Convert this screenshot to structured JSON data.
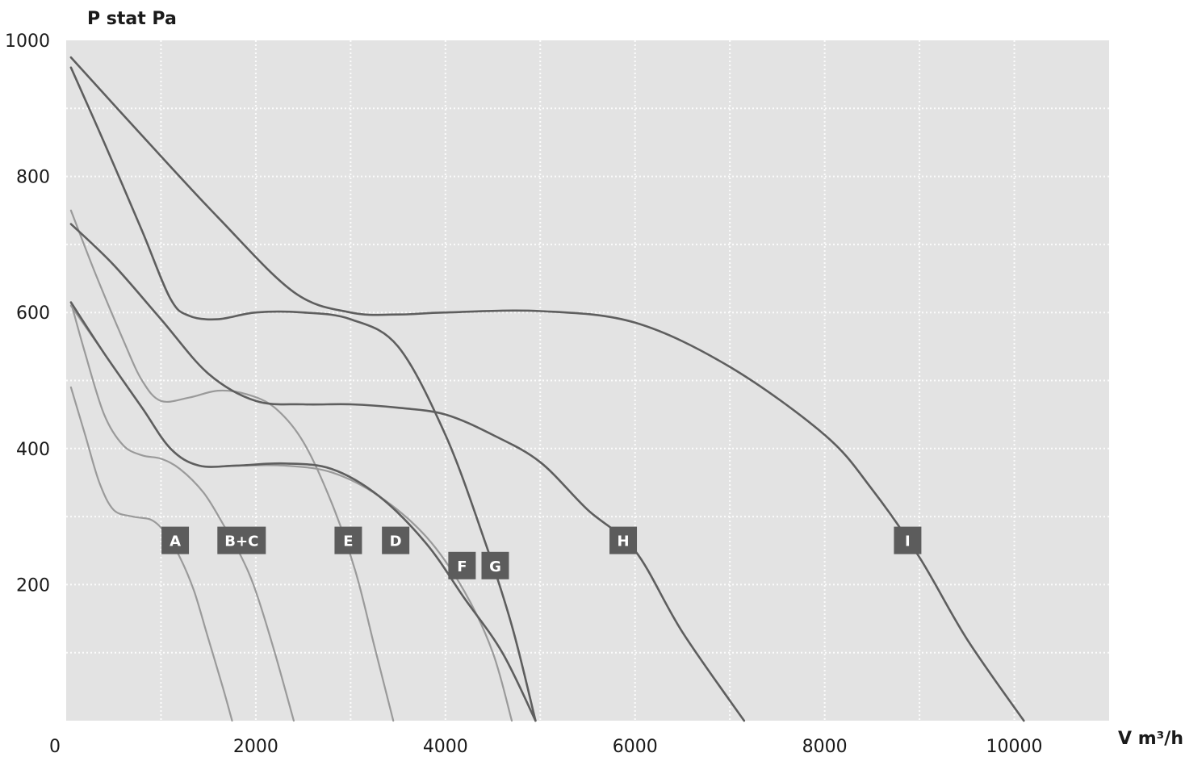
{
  "chart_data": {
    "type": "line",
    "title": "",
    "ylabel": "P stat Pa",
    "xlabel": "V m³/h",
    "xlim": [
      0,
      11000
    ],
    "ylim": [
      0,
      1000
    ],
    "x_ticks": [
      0,
      2000,
      4000,
      6000,
      8000,
      10000
    ],
    "y_ticks": [
      200,
      400,
      600,
      800,
      1000
    ],
    "x_tick_labels": [
      "0",
      "2000",
      "4000",
      "6000",
      "8000",
      "10000"
    ],
    "y_tick_labels": [
      "200",
      "400",
      "600",
      "800",
      "1000"
    ],
    "grid": true,
    "colors": {
      "plot_background": "#e3e3e3",
      "grid": "#ffffff",
      "curve_dark": "#5e5e5e",
      "curve_light": "#9a9a9a",
      "label_box": "#5c5c5c",
      "label_text": "#ffffff"
    },
    "series": [
      {
        "name": "A",
        "shade": "light",
        "x": [
          50,
          200,
          350,
          500,
          700,
          900,
          1050,
          1200,
          1350,
          1500,
          1650,
          1750
        ],
        "y": [
          490,
          420,
          350,
          310,
          300,
          295,
          275,
          240,
          190,
          120,
          50,
          0
        ]
      },
      {
        "name": "B+C",
        "shade": "light",
        "x": [
          50,
          200,
          400,
          600,
          800,
          1000,
          1200,
          1450,
          1650,
          1850,
          2000,
          2200,
          2400
        ],
        "y": [
          615,
          540,
          450,
          405,
          390,
          385,
          370,
          335,
          290,
          240,
          190,
          100,
          0
        ]
      },
      {
        "name": "E",
        "shade": "light",
        "x": [
          50,
          300,
          600,
          800,
          1000,
          1300,
          1600,
          1900,
          2200,
          2500,
          2800,
          3050,
          3250,
          3450
        ],
        "y": [
          750,
          660,
          560,
          500,
          470,
          475,
          485,
          480,
          460,
          410,
          320,
          220,
          110,
          0
        ]
      },
      {
        "name": "D",
        "shade": "light",
        "x": [
          50,
          400,
          800,
          1100,
          1400,
          1800,
          2300,
          2800,
          3300,
          3800,
          4200,
          4500,
          4700
        ],
        "y": [
          610,
          540,
          460,
          400,
          375,
          375,
          375,
          365,
          330,
          270,
          190,
          100,
          0
        ]
      },
      {
        "name": "F",
        "shade": "dark",
        "x": [
          50,
          400,
          800,
          1100,
          1400,
          1800,
          2300,
          2800,
          3300,
          3800,
          4200,
          4600,
          4950
        ],
        "y": [
          615,
          540,
          460,
          400,
          375,
          375,
          378,
          370,
          330,
          260,
          180,
          100,
          0
        ]
      },
      {
        "name": "G",
        "shade": "dark",
        "x": [
          50,
          400,
          800,
          1100,
          1300,
          1600,
          2000,
          2500,
          3000,
          3500,
          4000,
          4400,
          4700,
          4950
        ],
        "y": [
          960,
          850,
          720,
          620,
          595,
          590,
          600,
          600,
          590,
          550,
          420,
          270,
          140,
          0
        ]
      },
      {
        "name": "H",
        "shade": "dark",
        "x": [
          50,
          500,
          1000,
          1500,
          2000,
          2500,
          3000,
          3500,
          4000,
          4500,
          5000,
          5500,
          6000,
          6500,
          7150
        ],
        "y": [
          730,
          670,
          590,
          510,
          470,
          465,
          465,
          460,
          450,
          420,
          380,
          310,
          250,
          130,
          0
        ]
      },
      {
        "name": "I",
        "shade": "dark",
        "x": [
          50,
          800,
          1600,
          2400,
          3000,
          3500,
          4000,
          5000,
          6000,
          7000,
          8000,
          8500,
          9000,
          9500,
          10100
        ],
        "y": [
          975,
          860,
          740,
          630,
          600,
          597,
          600,
          602,
          585,
          520,
          420,
          340,
          240,
          120,
          0
        ]
      }
    ],
    "curve_labels": [
      {
        "text": "A",
        "x": 1150,
        "y": 265
      },
      {
        "text": "B+C",
        "x": 1850,
        "y": 265
      },
      {
        "text": "E",
        "x": 2975,
        "y": 265
      },
      {
        "text": "D",
        "x": 3475,
        "y": 265
      },
      {
        "text": "F",
        "x": 4175,
        "y": 228
      },
      {
        "text": "G",
        "x": 4525,
        "y": 228
      },
      {
        "text": "H",
        "x": 5875,
        "y": 265
      },
      {
        "text": "I",
        "x": 8875,
        "y": 265
      }
    ]
  }
}
